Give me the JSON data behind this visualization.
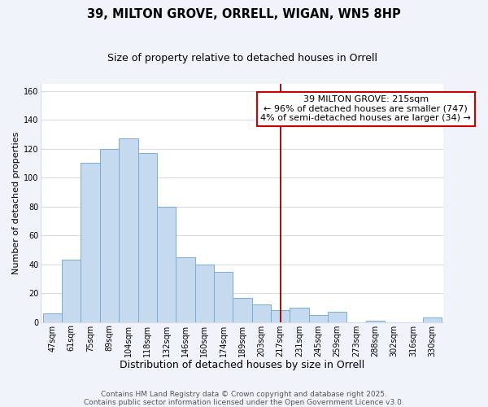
{
  "title": "39, MILTON GROVE, ORRELL, WIGAN, WN5 8HP",
  "subtitle": "Size of property relative to detached houses in Orrell",
  "xlabel": "Distribution of detached houses by size in Orrell",
  "ylabel": "Number of detached properties",
  "categories": [
    "47sqm",
    "61sqm",
    "75sqm",
    "89sqm",
    "104sqm",
    "118sqm",
    "132sqm",
    "146sqm",
    "160sqm",
    "174sqm",
    "189sqm",
    "203sqm",
    "217sqm",
    "231sqm",
    "245sqm",
    "259sqm",
    "273sqm",
    "288sqm",
    "302sqm",
    "316sqm",
    "330sqm"
  ],
  "values": [
    6,
    43,
    110,
    120,
    127,
    117,
    80,
    45,
    40,
    35,
    17,
    12,
    8,
    10,
    5,
    7,
    0,
    1,
    0,
    0,
    3
  ],
  "bar_color": "#c5d9ef",
  "bar_edge_color": "#7aadd4",
  "ylim": [
    0,
    165
  ],
  "yticks": [
    0,
    20,
    40,
    60,
    80,
    100,
    120,
    140,
    160
  ],
  "vline_x_index": 12,
  "vline_color": "#8b0000",
  "annotation_title": "39 MILTON GROVE: 215sqm",
  "annotation_line1": "← 96% of detached houses are smaller (747)",
  "annotation_line2": "4% of semi-detached houses are larger (34) →",
  "annotation_box_facecolor": "#ffffff",
  "annotation_box_edge_color": "#cc0000",
  "footer_line1": "Contains HM Land Registry data © Crown copyright and database right 2025.",
  "footer_line2": "Contains public sector information licensed under the Open Government Licence v3.0.",
  "plot_bg_color": "#ffffff",
  "fig_bg_color": "#f0f4fa",
  "grid_color": "#d8dce8",
  "title_fontsize": 10.5,
  "subtitle_fontsize": 9,
  "ylabel_fontsize": 8,
  "xlabel_fontsize": 9,
  "tick_fontsize": 7,
  "footer_fontsize": 6.5,
  "ann_fontsize": 8
}
